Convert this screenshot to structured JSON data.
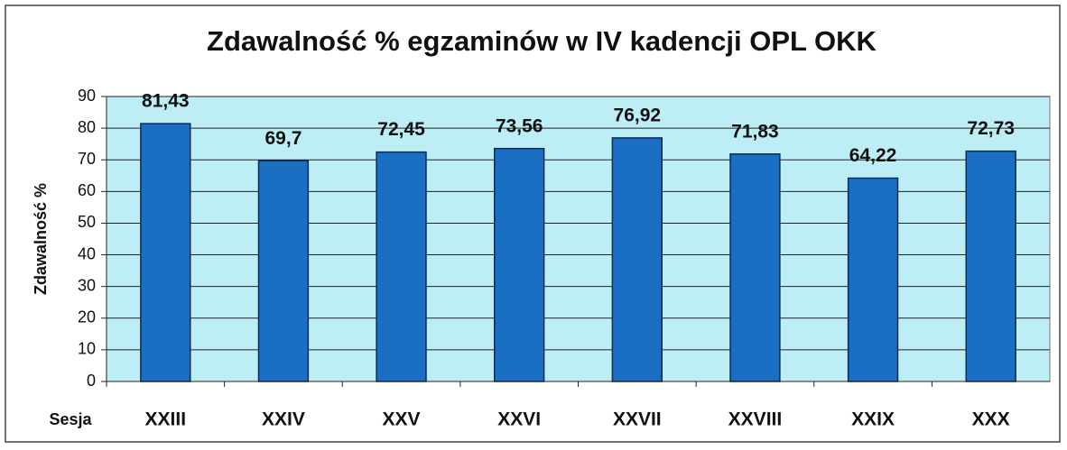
{
  "chart_data": {
    "type": "bar",
    "title": "Zdawalność % egzaminów w IV kadencji OPL OKK",
    "y_label": "Zdawalność %",
    "x_label": "Sesja",
    "categories": [
      "XXIII",
      "XXIV",
      "XXV",
      "XXVI",
      "XXVII",
      "XXVIII",
      "XXIX",
      "XXX"
    ],
    "values": [
      81.43,
      69.7,
      72.45,
      73.56,
      76.92,
      71.83,
      64.22,
      72.73
    ],
    "value_labels": [
      "81,43",
      "69,7",
      "72,45",
      "73,56",
      "76,92",
      "71,83",
      "64,22",
      "72,73"
    ],
    "color": "#1b6fc2",
    "ylim": [
      0,
      90
    ],
    "yticks": [
      0,
      10,
      20,
      30,
      40,
      50,
      60,
      70,
      80,
      90
    ],
    "grid": true
  }
}
